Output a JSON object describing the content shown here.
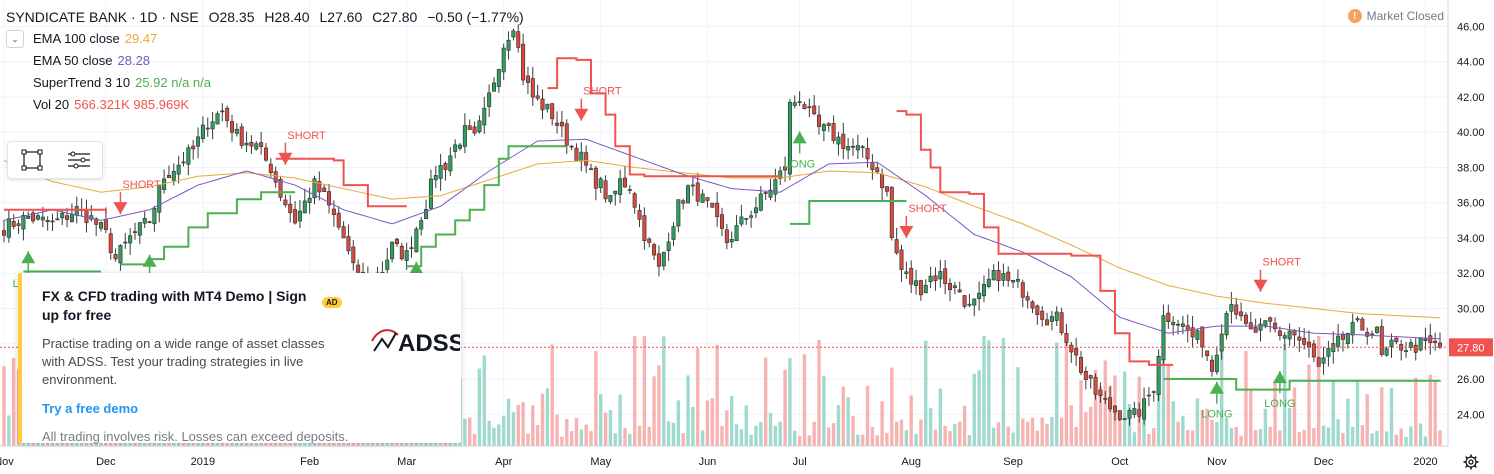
{
  "header": {
    "symbol": "SYNDICATE BANK · 1D · NSE",
    "open": "O28.35",
    "high": "H28.40",
    "low": "L27.60",
    "close": "C27.80",
    "change": "−0.50 (−1.77%)",
    "market_status": "Market Closed",
    "market_icon": "!"
  },
  "indicators": [
    {
      "name": "EMA 100 close",
      "value": "29.47",
      "color": "#e8a93a"
    },
    {
      "name": "EMA 50 close",
      "value": "28.28",
      "color": "#7e57c2"
    },
    {
      "name": "SuperTrend 3 10",
      "value": "25.92 n/a n/a",
      "color": "#4caf50"
    },
    {
      "name": "Vol 20",
      "value": "566.321K 985.969K",
      "color": "#ef5350"
    }
  ],
  "toolbar": {
    "rect_icon": "rectangle-tool-icon",
    "settings_icon": "object-tree-icon"
  },
  "ad": {
    "title": "FX & CFD trading with MT4 Demo | Sign up for free",
    "badge": "AD",
    "logo_text": "ADSS",
    "body": "Practise trading on a wide range of asset classes with ADSS. Test your trading strategies in live environment.",
    "link": "Try a free demo",
    "disclaimer": "All trading involves risk. Losses can exceed deposits."
  },
  "chart_data": {
    "type": "candlestick",
    "title": "SYNDICATE BANK · 1D · NSE",
    "y_ticks": [
      24,
      26,
      28,
      30,
      32,
      34,
      36,
      38,
      40,
      42,
      44,
      46
    ],
    "y_tick_labels": [
      "24.00",
      "26.00",
      "28.00",
      "30.00",
      "32.00",
      "34.00",
      "36.00",
      "38.00",
      "40.00",
      "42.00",
      "44.00",
      "46.00"
    ],
    "ylim": [
      22.2,
      47.5
    ],
    "last_price": 27.8,
    "last_price_label": "27.80",
    "x_labels": [
      "Nov",
      "Dec",
      "2019",
      "Feb",
      "Mar",
      "Apr",
      "May",
      "Jun",
      "Jul",
      "Aug",
      "Sep",
      "Oct",
      "Nov",
      "Dec",
      "2020"
    ],
    "x_label_index": [
      0,
      21,
      41,
      63,
      83,
      103,
      123,
      145,
      164,
      187,
      208,
      230,
      250,
      272,
      293
    ],
    "x_count": 297,
    "price_key": [
      [
        0,
        34.6
      ],
      [
        5,
        35.2
      ],
      [
        10,
        34.8
      ],
      [
        15,
        35.6
      ],
      [
        18,
        35.1
      ],
      [
        21,
        34.2
      ],
      [
        23,
        32.8
      ],
      [
        26,
        34.0
      ],
      [
        30,
        35.0
      ],
      [
        33,
        37.5
      ],
      [
        36,
        38.2
      ],
      [
        39,
        39.0
      ],
      [
        42,
        40.6
      ],
      [
        45,
        41.2
      ],
      [
        48,
        39.8
      ],
      [
        52,
        39.2
      ],
      [
        55,
        38.0
      ],
      [
        57,
        36.5
      ],
      [
        60,
        35.0
      ],
      [
        62,
        36.0
      ],
      [
        64,
        37.0
      ],
      [
        66,
        36.3
      ],
      [
        68,
        35.2
      ],
      [
        70,
        34.0
      ],
      [
        72,
        32.2
      ],
      [
        75,
        31.7
      ],
      [
        78,
        32.2
      ],
      [
        80,
        33.5
      ],
      [
        83,
        33.0
      ],
      [
        85,
        34.6
      ],
      [
        87,
        36.0
      ],
      [
        89,
        37.8
      ],
      [
        91,
        38.2
      ],
      [
        93,
        39.2
      ],
      [
        95,
        40.0
      ],
      [
        97,
        39.6
      ],
      [
        99,
        41.0
      ],
      [
        101,
        43.0
      ],
      [
        103,
        45.0
      ],
      [
        105,
        46.2
      ],
      [
        107,
        43.2
      ],
      [
        109,
        42.0
      ],
      [
        111,
        41.5
      ],
      [
        113,
        41.0
      ],
      [
        115,
        40.0
      ],
      [
        117,
        39.2
      ],
      [
        119,
        38.5
      ],
      [
        121,
        37.5
      ],
      [
        123,
        37.0
      ],
      [
        125,
        36.0
      ],
      [
        127,
        37.2
      ],
      [
        129,
        37.0
      ],
      [
        131,
        35.0
      ],
      [
        133,
        33.5
      ],
      [
        135,
        32.2
      ],
      [
        137,
        34.2
      ],
      [
        139,
        35.8
      ],
      [
        141,
        36.8
      ],
      [
        143,
        36.5
      ],
      [
        145,
        35.8
      ],
      [
        147,
        34.8
      ],
      [
        149,
        33.8
      ],
      [
        151,
        34.5
      ],
      [
        153,
        35.2
      ],
      [
        155,
        35.8
      ],
      [
        157,
        36.5
      ],
      [
        159,
        37.2
      ],
      [
        161,
        38.0
      ],
      [
        162,
        41.5
      ],
      [
        164,
        42.0
      ],
      [
        166,
        41.0
      ],
      [
        168,
        40.2
      ],
      [
        170,
        40.0
      ],
      [
        172,
        39.6
      ],
      [
        174,
        39.2
      ],
      [
        176,
        39.0
      ],
      [
        178,
        38.5
      ],
      [
        180,
        37.8
      ],
      [
        182,
        36.5
      ],
      [
        183,
        34.0
      ],
      [
        185,
        32.2
      ],
      [
        187,
        31.5
      ],
      [
        189,
        31.2
      ],
      [
        191,
        31.8
      ],
      [
        193,
        31.9
      ],
      [
        195,
        31.3
      ],
      [
        197,
        31.0
      ],
      [
        199,
        30.0
      ],
      [
        201,
        30.5
      ],
      [
        203,
        31.5
      ],
      [
        205,
        32.0
      ],
      [
        207,
        31.5
      ],
      [
        209,
        31.3
      ],
      [
        211,
        30.8
      ],
      [
        213,
        30.0
      ],
      [
        215,
        29.5
      ],
      [
        217,
        29.4
      ],
      [
        219,
        28.4
      ],
      [
        221,
        27.2
      ],
      [
        223,
        26.0
      ],
      [
        225,
        25.2
      ],
      [
        227,
        24.6
      ],
      [
        229,
        24.2
      ],
      [
        231,
        24.0
      ],
      [
        233,
        23.9
      ],
      [
        235,
        24.5
      ],
      [
        237,
        25.6
      ],
      [
        239,
        29.5
      ],
      [
        241,
        29.6
      ],
      [
        243,
        29.0
      ],
      [
        245,
        28.4
      ],
      [
        247,
        28.2
      ],
      [
        249,
        26.6
      ],
      [
        251,
        29.0
      ],
      [
        253,
        30.6
      ],
      [
        255,
        29.2
      ],
      [
        257,
        28.6
      ],
      [
        259,
        28.8
      ],
      [
        261,
        29.0
      ],
      [
        263,
        28.4
      ],
      [
        265,
        28.8
      ],
      [
        267,
        28.2
      ],
      [
        269,
        27.6
      ],
      [
        271,
        26.6
      ],
      [
        273,
        27.4
      ],
      [
        275,
        28.0
      ],
      [
        277,
        28.6
      ],
      [
        279,
        29.0
      ],
      [
        281,
        28.8
      ],
      [
        283,
        28.6
      ],
      [
        284,
        27.2
      ],
      [
        286,
        27.8
      ],
      [
        288,
        27.9
      ],
      [
        290,
        27.8
      ],
      [
        293,
        28.0
      ],
      [
        296,
        27.8
      ]
    ],
    "ema100_key": [
      [
        0,
        38.4
      ],
      [
        10,
        37.2
      ],
      [
        20,
        36.6
      ],
      [
        30,
        36.9
      ],
      [
        40,
        37.5
      ],
      [
        50,
        37.7
      ],
      [
        60,
        37.4
      ],
      [
        70,
        36.8
      ],
      [
        80,
        36.2
      ],
      [
        90,
        36.4
      ],
      [
        100,
        37.3
      ],
      [
        110,
        38.2
      ],
      [
        120,
        38.4
      ],
      [
        130,
        38.0
      ],
      [
        140,
        37.7
      ],
      [
        150,
        37.4
      ],
      [
        160,
        37.4
      ],
      [
        170,
        37.8
      ],
      [
        180,
        37.7
      ],
      [
        190,
        36.9
      ],
      [
        200,
        35.8
      ],
      [
        210,
        34.8
      ],
      [
        220,
        33.6
      ],
      [
        230,
        32.3
      ],
      [
        240,
        31.3
      ],
      [
        250,
        30.7
      ],
      [
        260,
        30.3
      ],
      [
        270,
        30.0
      ],
      [
        280,
        29.7
      ],
      [
        296,
        29.47
      ]
    ],
    "ema50_key": [
      [
        0,
        35.0
      ],
      [
        10,
        35.6
      ],
      [
        20,
        35.0
      ],
      [
        30,
        35.6
      ],
      [
        40,
        37.0
      ],
      [
        50,
        37.8
      ],
      [
        60,
        37.0
      ],
      [
        70,
        35.6
      ],
      [
        80,
        34.8
      ],
      [
        90,
        35.8
      ],
      [
        100,
        37.8
      ],
      [
        110,
        39.5
      ],
      [
        120,
        39.6
      ],
      [
        130,
        38.6
      ],
      [
        140,
        37.6
      ],
      [
        150,
        36.8
      ],
      [
        160,
        36.6
      ],
      [
        170,
        38.2
      ],
      [
        180,
        38.3
      ],
      [
        190,
        36.4
      ],
      [
        200,
        34.2
      ],
      [
        210,
        33.2
      ],
      [
        220,
        31.8
      ],
      [
        230,
        29.5
      ],
      [
        240,
        28.6
      ],
      [
        250,
        29.0
      ],
      [
        260,
        29.0
      ],
      [
        270,
        28.6
      ],
      [
        280,
        28.5
      ],
      [
        296,
        28.28
      ]
    ],
    "supertrend": [
      {
        "trend": "down",
        "pts": [
          [
            0,
            35.6
          ],
          [
            6,
            35.6
          ],
          [
            21,
            35.4
          ]
        ]
      },
      {
        "trend": "up",
        "pts": [
          [
            4,
            32.1
          ],
          [
            20,
            32.1
          ]
        ]
      },
      {
        "trend": "up",
        "pts": [
          [
            24,
            32.5
          ],
          [
            30,
            32.8
          ],
          [
            33,
            33.5
          ],
          [
            38,
            34.6
          ],
          [
            42,
            35.4
          ],
          [
            48,
            36.2
          ],
          [
            53,
            36.6
          ],
          [
            60,
            36.6
          ]
        ]
      },
      {
        "trend": "down",
        "pts": [
          [
            56,
            38.5
          ],
          [
            58,
            38.5
          ],
          [
            68,
            38.4
          ],
          [
            70,
            37.0
          ],
          [
            75,
            35.8
          ],
          [
            83,
            35.8
          ]
        ]
      },
      {
        "trend": "up",
        "pts": [
          [
            83,
            32.4
          ],
          [
            86,
            33.5
          ],
          [
            89,
            34.2
          ],
          [
            93,
            35.0
          ],
          [
            96,
            35.6
          ],
          [
            99,
            37.0
          ],
          [
            102,
            38.5
          ],
          [
            104,
            39.2
          ],
          [
            110,
            39.2
          ],
          [
            116,
            39.2
          ]
        ]
      },
      {
        "trend": "down",
        "pts": [
          [
            112,
            42.5
          ],
          [
            114,
            44.2
          ],
          [
            118,
            44.1
          ],
          [
            121,
            42.2
          ],
          [
            124,
            41.0
          ],
          [
            126,
            39.2
          ],
          [
            129,
            37.6
          ],
          [
            132,
            37.5
          ],
          [
            150,
            37.5
          ],
          [
            160,
            37.5
          ]
        ]
      },
      {
        "trend": "up",
        "pts": [
          [
            162,
            34.8
          ],
          [
            166,
            36.1
          ],
          [
            186,
            36.1
          ]
        ]
      },
      {
        "trend": "down",
        "pts": [
          [
            184,
            41.2
          ],
          [
            186,
            41.0
          ],
          [
            189,
            39.0
          ],
          [
            191,
            38.0
          ],
          [
            193,
            36.6
          ],
          [
            199,
            36.5
          ],
          [
            202,
            34.6
          ],
          [
            205,
            33.1
          ],
          [
            220,
            33.0
          ],
          [
            223,
            33.0
          ],
          [
            226,
            31.0
          ],
          [
            229,
            28.6
          ],
          [
            232,
            27.0
          ],
          [
            236,
            26.8
          ],
          [
            241,
            26.8
          ]
        ]
      },
      {
        "trend": "up",
        "pts": [
          [
            239,
            26.0
          ],
          [
            248,
            26.0
          ],
          [
            250,
            26.0
          ],
          [
            254,
            25.4
          ],
          [
            258,
            25.4
          ],
          [
            265,
            25.9
          ],
          [
            270,
            25.9
          ],
          [
            296,
            25.92
          ]
        ]
      }
    ],
    "signals": [
      {
        "type": "long",
        "i": 5,
        "label": "LONG"
      },
      {
        "type": "short",
        "i": 24,
        "label": "SHORT"
      },
      {
        "type": "long",
        "i": 30,
        "label": "LONG"
      },
      {
        "type": "short",
        "i": 58,
        "label": "SHORT"
      },
      {
        "type": "long",
        "i": 85,
        "label": "LONG"
      },
      {
        "type": "short",
        "i": 119,
        "label": "SHORT"
      },
      {
        "type": "long",
        "i": 164,
        "label": "LONG"
      },
      {
        "type": "short",
        "i": 186,
        "label": "SHORT"
      },
      {
        "type": "long",
        "i": 250,
        "label": "LONG"
      },
      {
        "type": "short",
        "i": 259,
        "label": "SHORT"
      },
      {
        "type": "long",
        "i": 263,
        "label": "LONG"
      }
    ]
  }
}
